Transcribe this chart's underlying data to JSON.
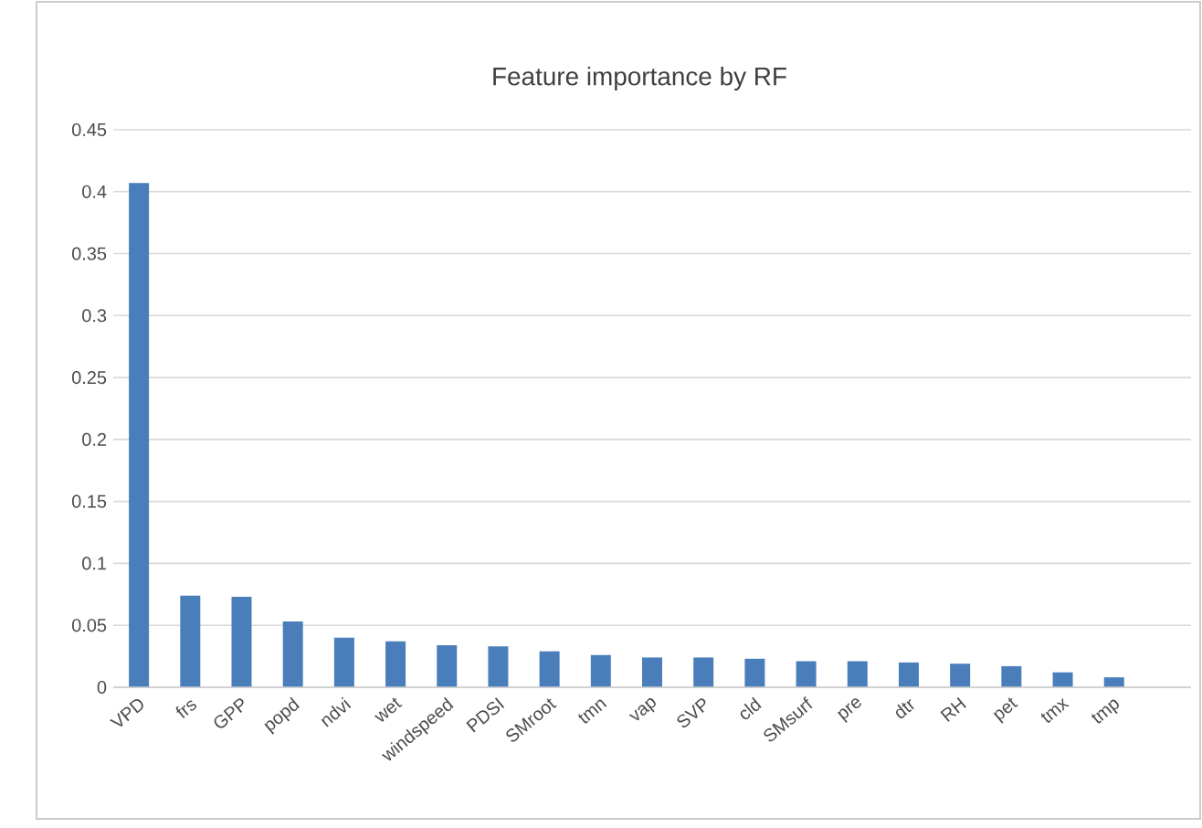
{
  "chart_data": {
    "type": "bar",
    "title": "Feature importance by RF",
    "categories": [
      "VPD",
      "frs",
      "GPP",
      "popd",
      "ndvi",
      "wet",
      "windspeed",
      "PDSI",
      "SMroot",
      "tmn",
      "vap",
      "SVP",
      "cld",
      "SMsurf",
      "pre",
      "dtr",
      "RH",
      "pet",
      "tmx",
      "tmp",
      null
    ],
    "values": [
      0.407,
      0.074,
      0.073,
      0.053,
      0.04,
      0.037,
      0.034,
      0.033,
      0.029,
      0.026,
      0.024,
      0.024,
      0.023,
      0.021,
      0.021,
      0.02,
      0.019,
      0.017,
      0.012,
      0.008,
      null
    ],
    "color": "#4a7ebb",
    "ylim": [
      0,
      0.45
    ],
    "yticks": [
      0,
      0.05,
      0.1,
      0.15,
      0.2,
      0.25,
      0.3,
      0.35,
      0.4,
      0.45
    ],
    "grid": "y"
  }
}
